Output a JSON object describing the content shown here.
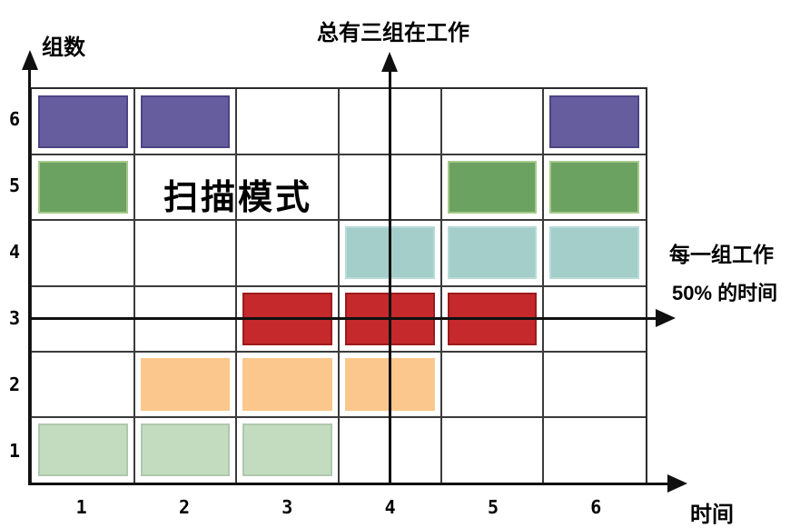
{
  "page": {
    "background": "#ffffff"
  },
  "colors": {
    "grid_line": "#3b3b3b",
    "axis": "#101010",
    "plot_border": "#2b2b2b"
  },
  "chart_data": {
    "type": "heatmap",
    "title": "总有三组在工作",
    "ylabel": "组数",
    "xlabel": "时间",
    "center_annotation": "扫描模式",
    "right_annotation_line1": "每一组工作",
    "right_annotation_line2": "50% 的时间",
    "x_ticks": [
      "1",
      "2",
      "3",
      "4",
      "5",
      "6"
    ],
    "y_ticks": [
      "6",
      "5",
      "4",
      "3",
      "2",
      "1"
    ],
    "x_range": [
      1,
      6
    ],
    "y_range": [
      1,
      6
    ],
    "grid": true,
    "legend_position": "none",
    "reference_lines": {
      "vertical_at_time": 4,
      "horizontal_at_group": 3
    },
    "series": [
      {
        "group": 6,
        "active_times": [
          1,
          2,
          6
        ],
        "fill": "#665d9e",
        "border": "#4b4485"
      },
      {
        "group": 5,
        "active_times": [
          1,
          5,
          6
        ],
        "fill": "#6ba161",
        "border": "#a6c98b"
      },
      {
        "group": 4,
        "active_times": [
          4,
          5,
          6
        ],
        "fill": "#a3cec9",
        "border": "#b7dbd6"
      },
      {
        "group": 3,
        "active_times": [
          3,
          4,
          5
        ],
        "fill": "#c5292c",
        "border": "#9c1b1d"
      },
      {
        "group": 2,
        "active_times": [
          2,
          3,
          4
        ],
        "fill": "#fcc78c",
        "border": "#fcc78c"
      },
      {
        "group": 1,
        "active_times": [
          1,
          2,
          3
        ],
        "fill": "#c3dcc0",
        "border": "#aec8ae"
      }
    ]
  }
}
